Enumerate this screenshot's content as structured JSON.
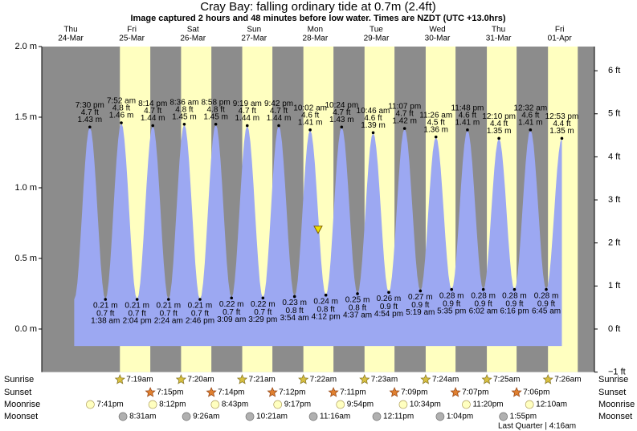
{
  "chart_data": {
    "type": "tide",
    "title": "Cray Bay: falling  ordinary tide at 0.7m (2.4ft)",
    "subtitle": "Image captured 2 hours and 48 minutes before low water. Times are NZDT (UTC +13.0hrs)",
    "color": "#9ca8f2",
    "days": [
      {
        "weekday": "Thu",
        "date": "24-Mar"
      },
      {
        "weekday": "Fri",
        "date": "25-Mar"
      },
      {
        "weekday": "Sat",
        "date": "26-Mar"
      },
      {
        "weekday": "Sun",
        "date": "27-Mar"
      },
      {
        "weekday": "Mon",
        "date": "28-Mar"
      },
      {
        "weekday": "Tue",
        "date": "29-Mar"
      },
      {
        "weekday": "Wed",
        "date": "30-Mar"
      },
      {
        "weekday": "Thu",
        "date": "31-Mar"
      },
      {
        "weekday": "Fri",
        "date": "01-Apr"
      }
    ],
    "tides": [
      {
        "time": "7:30 pm",
        "m": 1.43,
        "m_label": "1.43 m",
        "ft": 4.7,
        "ft_label": "4.7 ft"
      },
      {
        "time": "1:38 am",
        "m": 0.21,
        "m_label": "0.21 m",
        "ft": 0.7,
        "ft_label": "0.7 ft"
      },
      {
        "time": "7:52 am",
        "m": 1.46,
        "m_label": "1.46 m",
        "ft": 4.8,
        "ft_label": "4.8 ft"
      },
      {
        "time": "2:04 pm",
        "m": 0.21,
        "m_label": "0.21 m",
        "ft": 0.7,
        "ft_label": "0.7 ft"
      },
      {
        "time": "8:14 pm",
        "m": 1.44,
        "m_label": "1.44 m",
        "ft": 4.7,
        "ft_label": "4.7 ft"
      },
      {
        "time": "2:24 am",
        "m": 0.21,
        "m_label": "0.21 m",
        "ft": 0.7,
        "ft_label": "0.7 ft"
      },
      {
        "time": "8:36 am",
        "m": 1.45,
        "m_label": "1.45 m",
        "ft": 4.8,
        "ft_label": "4.8 ft"
      },
      {
        "time": "2:46 pm",
        "m": 0.21,
        "m_label": "0.21 m",
        "ft": 0.7,
        "ft_label": "0.7 ft"
      },
      {
        "time": "8:58 pm",
        "m": 1.45,
        "m_label": "1.45 m",
        "ft": 4.8,
        "ft_label": "4.8 ft"
      },
      {
        "time": "3:09 am",
        "m": 0.22,
        "m_label": "0.22 m",
        "ft": 0.7,
        "ft_label": "0.7 ft"
      },
      {
        "time": "9:19 am",
        "m": 1.44,
        "m_label": "1.44 m",
        "ft": 4.7,
        "ft_label": "4.7 ft"
      },
      {
        "time": "3:29 pm",
        "m": 0.22,
        "m_label": "0.22 m",
        "ft": 0.7,
        "ft_label": "0.7 ft"
      },
      {
        "time": "9:42 pm",
        "m": 1.44,
        "m_label": "1.44 m",
        "ft": 4.7,
        "ft_label": "4.7 ft"
      },
      {
        "time": "3:54 am",
        "m": 0.23,
        "m_label": "0.23 m",
        "ft": 0.8,
        "ft_label": "0.8 ft"
      },
      {
        "time": "10:02 am",
        "m": 1.41,
        "m_label": "1.41 m",
        "ft": 4.6,
        "ft_label": "4.6 ft"
      },
      {
        "time": "4:12 pm",
        "m": 0.24,
        "m_label": "0.24 m",
        "ft": 0.8,
        "ft_label": "0.8 ft"
      },
      {
        "time": "10:24 pm",
        "m": 1.43,
        "m_label": "1.43 m",
        "ft": 4.7,
        "ft_label": "4.7 ft"
      },
      {
        "time": "4:37 am",
        "m": 0.25,
        "m_label": "0.25 m",
        "ft": 0.8,
        "ft_label": "0.8 ft"
      },
      {
        "time": "10:46 am",
        "m": 1.39,
        "m_label": "1.39 m",
        "ft": 4.6,
        "ft_label": "4.6 ft"
      },
      {
        "time": "4:54 pm",
        "m": 0.26,
        "m_label": "0.26 m",
        "ft": 0.9,
        "ft_label": "0.9 ft"
      },
      {
        "time": "11:07 pm",
        "m": 1.42,
        "m_label": "1.42 m",
        "ft": 4.7,
        "ft_label": "4.7 ft"
      },
      {
        "time": "5:19 am",
        "m": 0.27,
        "m_label": "0.27 m",
        "ft": 0.9,
        "ft_label": "0.9 ft"
      },
      {
        "time": "11:26 am",
        "m": 1.36,
        "m_label": "1.36 m",
        "ft": 4.5,
        "ft_label": "4.5 ft"
      },
      {
        "time": "5:35 pm",
        "m": 0.28,
        "m_label": "0.28 m",
        "ft": 0.9,
        "ft_label": "0.9 ft"
      },
      {
        "time": "11:48 pm",
        "m": 1.41,
        "m_label": "1.41 m",
        "ft": 4.6,
        "ft_label": "4.6 ft"
      },
      {
        "time": "6:02 am",
        "m": 0.28,
        "m_label": "0.28 m",
        "ft": 0.9,
        "ft_label": "0.9 ft"
      },
      {
        "time": "12:10 pm",
        "m": 1.35,
        "m_label": "1.35 m",
        "ft": 4.4,
        "ft_label": "4.4 ft"
      },
      {
        "time": "6:16 pm",
        "m": 0.28,
        "m_label": "0.28 m",
        "ft": 0.9,
        "ft_label": "0.9 ft"
      },
      {
        "time": "12:32 am",
        "m": 1.41,
        "m_label": "1.41 m",
        "ft": 4.6,
        "ft_label": "4.6 ft"
      },
      {
        "time": "6:45 am",
        "m": 0.28,
        "m_label": "0.28 m",
        "ft": 0.9,
        "ft_label": "0.9 ft"
      },
      {
        "time": "12:53 pm",
        "m": 1.35,
        "m_label": "1.35 m",
        "ft": 4.4,
        "ft_label": "4.4 ft"
      }
    ],
    "ylim": [
      -0.3048,
      2.0
    ],
    "yticks": [
      {
        "value": 0,
        "label": "0.0 m"
      },
      {
        "value": 0.5,
        "label": "0.5 m"
      },
      {
        "value": 1,
        "label": "1.0 m"
      },
      {
        "value": 1.5,
        "label": "1.5 m"
      },
      {
        "value": 2,
        "label": "2.0 m"
      }
    ],
    "y2lim": [
      -1,
      6.5617
    ],
    "y2ticks": [
      {
        "value": -1,
        "label": "−1 ft"
      },
      {
        "value": 0,
        "label": "0 ft"
      },
      {
        "value": 1,
        "label": "1 ft"
      },
      {
        "value": 2,
        "label": "2 ft"
      },
      {
        "value": 3,
        "label": "3 ft"
      },
      {
        "value": 4,
        "label": "4 ft"
      },
      {
        "value": 5,
        "label": "5 ft"
      },
      {
        "value": 6,
        "label": "6 ft"
      }
    ],
    "current_level": 0.7,
    "rows": [
      {
        "name": "Sunrise",
        "times": [
          null,
          "7:19am",
          "7:20am",
          "7:21am",
          "7:22am",
          "7:23am",
          "7:24am",
          "7:25am",
          "7:26am"
        ]
      },
      {
        "name": "Sunset",
        "times": [
          null,
          "7:15pm",
          "7:14pm",
          "7:12pm",
          "7:11pm",
          "7:09pm",
          "7:07pm",
          "7:06pm",
          null
        ]
      },
      {
        "name": "Moonrise",
        "times": [
          "7:41pm",
          "8:12pm",
          "8:43pm",
          "9:17pm",
          "9:54pm",
          "10:34pm",
          "11:20pm",
          null,
          "12:10am"
        ]
      },
      {
        "name": "Moonset",
        "times": [
          null,
          "8:31am",
          "9:26am",
          "10:21am",
          "11:16am",
          "12:11pm",
          "1:04pm",
          "1:55pm",
          null
        ]
      }
    ],
    "moon_phase": "Last Quarter | 4:16am"
  }
}
